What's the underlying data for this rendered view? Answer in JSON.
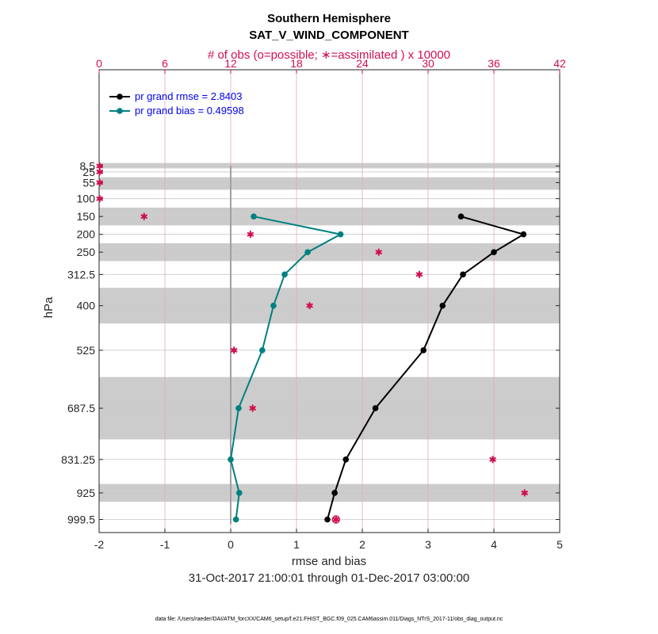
{
  "chart_data": {
    "type": "line",
    "title": "Southern Hemisphere",
    "subtitle": "SAT_V_WIND_COMPONENT",
    "top_axis_label": "# of obs (o=possible; ∗=assimilated ) x 10000",
    "top_axis_range": [
      0,
      42
    ],
    "top_ticks": [
      "0",
      "6",
      "12",
      "18",
      "24",
      "30",
      "36",
      "42"
    ],
    "xlabel": "rmse and bias",
    "xlim": [
      -2,
      5
    ],
    "x_ticks": [
      "-2",
      "-1",
      "0",
      "1",
      "2",
      "3",
      "4",
      "5"
    ],
    "ylabel": "hPa",
    "levels": [
      8.5,
      25,
      55,
      100,
      150,
      200,
      250,
      312.5,
      400,
      525,
      687.5,
      831.25,
      925,
      999.5
    ],
    "level_labels": [
      "8.5",
      "25",
      "55",
      "100",
      "150",
      "200",
      "250",
      "312.5",
      "400",
      "525",
      "687.5",
      "831.25",
      "925",
      "999.5"
    ],
    "shaded_layers": [
      [
        0,
        15
      ],
      [
        40,
        75
      ],
      [
        125,
        175
      ],
      [
        225,
        275
      ],
      [
        350,
        450
      ],
      [
        600,
        775
      ],
      [
        900,
        950
      ]
    ],
    "time_range": "31-Oct-2017 21:00:01 through 01-Dec-2017 03:00:00",
    "footer": "data file: /Users/raeder/DAI/ATM_forcXX/CAM6_setup/f.e21.FHIST_BGC.f09_025.CAM6assim.011/Diags_NTrS_2017-11/obs_diag_output.nc",
    "series": [
      {
        "name": "pr grand rmse = 2.8403",
        "color": "#000000",
        "levels": [
          150,
          200,
          250,
          312.5,
          400,
          525,
          687.5,
          831.25,
          925,
          999.5
        ],
        "values": [
          3.5,
          4.45,
          4.0,
          3.53,
          3.22,
          2.93,
          2.2,
          1.75,
          1.58,
          1.47
        ]
      },
      {
        "name": "pr grand bias = 0.49598",
        "color": "#008080",
        "levels": [
          150,
          200,
          250,
          312.5,
          400,
          525,
          687.5,
          831.25,
          925,
          999.5
        ],
        "values": [
          0.35,
          1.67,
          1.17,
          0.82,
          0.65,
          0.48,
          0.12,
          0.0,
          0.13,
          0.08
        ]
      }
    ],
    "obs_assimilated": {
      "color": "#d0104c",
      "levels": [
        8.5,
        25,
        55,
        100,
        150,
        200,
        250,
        312.5,
        400,
        525,
        687.5,
        831.25,
        925,
        999.5
      ],
      "values": [
        0.05,
        0.05,
        0.05,
        0.05,
        4.1,
        13.8,
        25.5,
        29.2,
        19.2,
        12.3,
        14.0,
        35.9,
        38.8,
        21.6
      ]
    },
    "obs_possible": {
      "color": "#d0104c",
      "levels": [
        999.5
      ],
      "values": [
        21.6
      ]
    },
    "zero_line_value": 0
  }
}
